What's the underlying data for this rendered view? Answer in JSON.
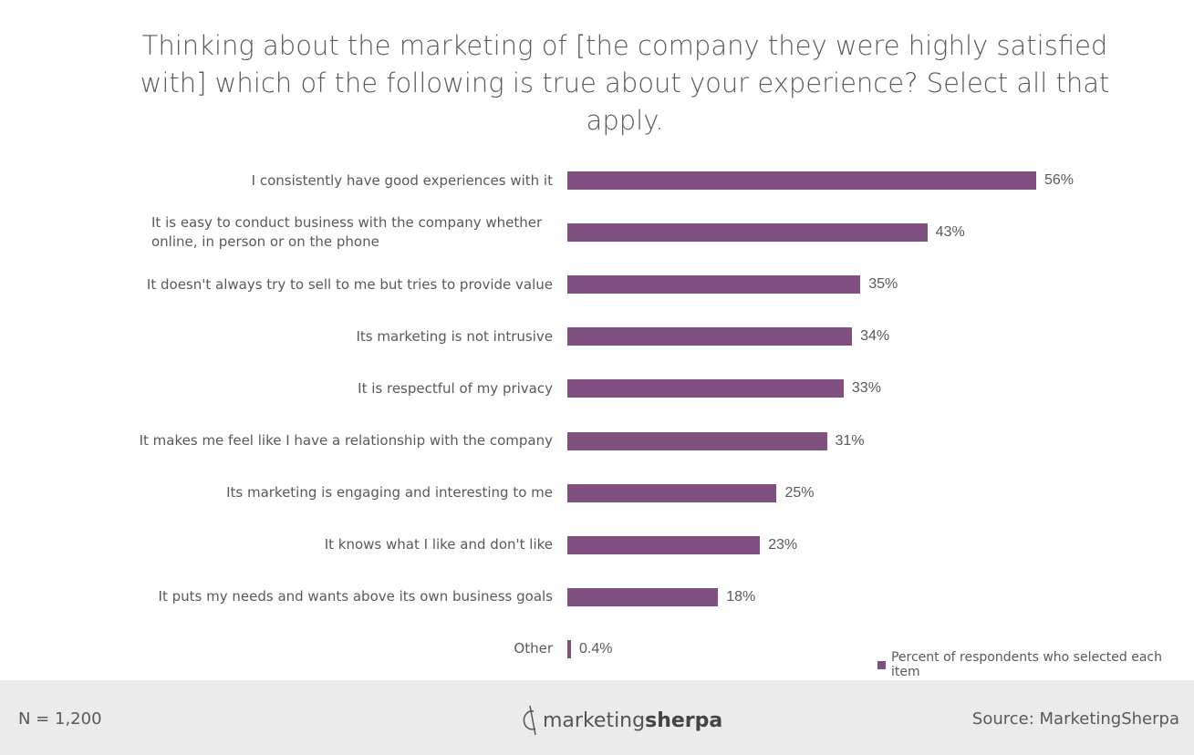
{
  "chart_data": {
    "type": "bar",
    "orientation": "horizontal",
    "title": "Thinking about the marketing of [the company they were highly satisfied with] which of the following is true about your experience? Select all that apply.",
    "categories": [
      "I consistently have good experiences with it",
      "It is easy to conduct business with the company whether online, in person or on the phone",
      "It doesn't always try to sell to me but tries to provide value",
      "Its marketing is not intrusive",
      "It is respectful of my privacy",
      "It makes me feel like I have a relationship with the company",
      "Its marketing is engaging and interesting to me",
      "It knows what I like and don't like",
      "It puts my needs and wants above its own business goals",
      "Other"
    ],
    "values": [
      56,
      43,
      35,
      34,
      33,
      31,
      25,
      23,
      18,
      0.4
    ],
    "value_labels": [
      "56%",
      "43%",
      "35%",
      "34%",
      "33%",
      "31%",
      "25%",
      "23%",
      "18%",
      "0.4%"
    ],
    "legend": [
      "Percent of respondents who selected each item"
    ],
    "legend_position": "bottom-right",
    "bar_color": "#7f4f7f",
    "xlim": [
      0,
      56
    ],
    "grid": false
  },
  "footer": {
    "n": "N = 1,200",
    "logo_light": "marketing",
    "logo_bold": "sherpa",
    "source": "Source: MarketingSherpa"
  }
}
